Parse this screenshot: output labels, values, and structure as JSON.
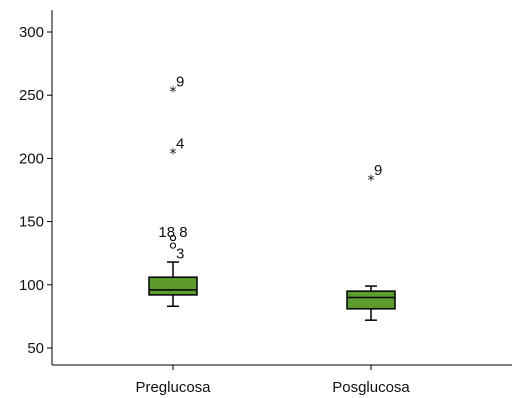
{
  "chart_data": {
    "type": "boxplot",
    "title": "",
    "xlabel": "",
    "ylabel": "",
    "ylim": [
      40,
      315
    ],
    "yticks": [
      50,
      100,
      150,
      200,
      250,
      300
    ],
    "ytick_labels": [
      "50",
      "100",
      "150",
      "200",
      "250",
      "300"
    ],
    "categories": [
      "Preglucosa",
      "Posglucosa"
    ],
    "box_fill": "#5c9c2e",
    "boxes": [
      {
        "category": "Preglucosa",
        "whisker_low": 83,
        "q1": 92,
        "median": 96,
        "q3": 106,
        "whisker_high": 118,
        "outliers": [
          {
            "value": 256,
            "marker": "extreme",
            "label": "9"
          },
          {
            "value": 207,
            "marker": "extreme",
            "label": "4"
          },
          {
            "value": 137,
            "marker": "circle",
            "label": "18"
          },
          {
            "value": 137,
            "marker": "circle",
            "label": "8"
          },
          {
            "value": 131,
            "marker": "circle",
            "label": "3"
          }
        ]
      },
      {
        "category": "Posglucosa",
        "whisker_low": 72,
        "q1": 81,
        "median": 90,
        "q3": 95,
        "whisker_high": 99,
        "outliers": [
          {
            "value": 186,
            "marker": "extreme",
            "label": "9"
          }
        ]
      }
    ]
  }
}
